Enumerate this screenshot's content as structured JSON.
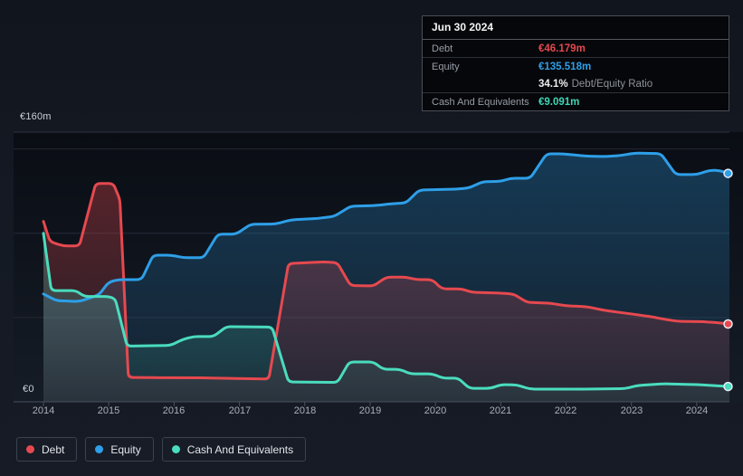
{
  "colors": {
    "debt": "#e5494f",
    "equity": "#2e9fe8",
    "cash": "#4adcbe",
    "debt_fill_top": "rgba(229,73,79,0.34)",
    "debt_fill_bottom": "rgba(229,73,79,0.08)",
    "equity_fill_top": "rgba(46,159,232,0.30)",
    "equity_fill_bottom": "rgba(46,159,232,0.05)",
    "cash_fill_top": "rgba(74,220,190,0.28)",
    "cash_fill_bottom": "rgba(74,220,190,0.07)"
  },
  "tooltip": {
    "date": "Jun 30 2024",
    "debt_label": "Debt",
    "debt_value": "€46.179m",
    "equity_label": "Equity",
    "equity_value": "€135.518m",
    "ratio_value": "34.1%",
    "ratio_label": "Debt/Equity Ratio",
    "cash_label": "Cash And Equivalents",
    "cash_value": "€9.091m"
  },
  "legend": {
    "debt": "Debt",
    "equity": "Equity",
    "cash": "Cash And Equivalents"
  },
  "y_axis": {
    "max_label": "€160m",
    "zero_label": "€0"
  },
  "chart_data": {
    "type": "area",
    "unit": "€m",
    "x_range": [
      2014,
      2024.5
    ],
    "y_range": [
      0,
      160
    ],
    "grid": true,
    "legend_position": "bottom-left",
    "y_gridlines_m": [
      50,
      100,
      150
    ],
    "x_tick_years": [
      "2014",
      "2015",
      "2016",
      "2017",
      "2018",
      "2019",
      "2020",
      "2021",
      "2022",
      "2023",
      "2024"
    ],
    "end_values": {
      "debt": 46.179,
      "equity": 135.518,
      "cash": 9.091
    },
    "series": [
      {
        "name": "Debt",
        "color_key": "debt",
        "points": [
          [
            2014,
            107
          ],
          [
            2014.1,
            95
          ],
          [
            2014.3,
            92.5
          ],
          [
            2014.55,
            92.5
          ],
          [
            2014.8,
            129.5
          ],
          [
            2015.07,
            129.5
          ],
          [
            2015.17,
            120
          ],
          [
            2015.3,
            14.5
          ],
          [
            2015.75,
            14.3
          ],
          [
            2016.5,
            14.2
          ],
          [
            2017,
            13.8
          ],
          [
            2017.45,
            13.5
          ],
          [
            2017.75,
            82
          ],
          [
            2018,
            82.5
          ],
          [
            2018.3,
            83
          ],
          [
            2018.5,
            82.5
          ],
          [
            2018.7,
            69
          ],
          [
            2019.05,
            68.7
          ],
          [
            2019.25,
            74
          ],
          [
            2019.55,
            74
          ],
          [
            2019.7,
            72.5
          ],
          [
            2019.95,
            72.5
          ],
          [
            2020.1,
            67
          ],
          [
            2020.4,
            67
          ],
          [
            2020.55,
            65
          ],
          [
            2021,
            64.5
          ],
          [
            2021.2,
            63.9
          ],
          [
            2021.4,
            59
          ],
          [
            2021.75,
            58.5
          ],
          [
            2022,
            57
          ],
          [
            2022.3,
            56.5
          ],
          [
            2022.6,
            54.2
          ],
          [
            2023,
            52.1
          ],
          [
            2023.3,
            50.5
          ],
          [
            2023.5,
            49
          ],
          [
            2023.7,
            47.8
          ],
          [
            2024.1,
            47.5
          ],
          [
            2024.3,
            47
          ],
          [
            2024.5,
            46.179
          ]
        ]
      },
      {
        "name": "Equity",
        "color_key": "equity",
        "points": [
          [
            2014,
            64
          ],
          [
            2014.2,
            60
          ],
          [
            2014.55,
            59.5
          ],
          [
            2014.85,
            63.5
          ],
          [
            2015,
            71
          ],
          [
            2015.15,
            72.5
          ],
          [
            2015.5,
            72.5
          ],
          [
            2015.68,
            87
          ],
          [
            2015.95,
            87
          ],
          [
            2016.15,
            85.5
          ],
          [
            2016.45,
            85.5
          ],
          [
            2016.67,
            99.5
          ],
          [
            2016.95,
            99.5
          ],
          [
            2017.17,
            105.3
          ],
          [
            2017.55,
            105.5
          ],
          [
            2017.8,
            108
          ],
          [
            2018.2,
            108.8
          ],
          [
            2018.45,
            110
          ],
          [
            2018.7,
            116
          ],
          [
            2019.1,
            116.5
          ],
          [
            2019.35,
            117.6
          ],
          [
            2019.55,
            118
          ],
          [
            2019.75,
            125.6
          ],
          [
            2020.3,
            126.2
          ],
          [
            2020.5,
            126.7
          ],
          [
            2020.72,
            130.5
          ],
          [
            2021,
            130.8
          ],
          [
            2021.15,
            132.6
          ],
          [
            2021.45,
            132.6
          ],
          [
            2021.7,
            147.1
          ],
          [
            2021.95,
            147.1
          ],
          [
            2022.3,
            145.8
          ],
          [
            2022.6,
            145.5
          ],
          [
            2022.85,
            146.2
          ],
          [
            2023.05,
            147.6
          ],
          [
            2023.45,
            147.3
          ],
          [
            2023.68,
            134.8
          ],
          [
            2024,
            134.8
          ],
          [
            2024.2,
            137.4
          ],
          [
            2024.35,
            137.2
          ],
          [
            2024.5,
            135.518
          ]
        ]
      },
      {
        "name": "Cash And Equivalents",
        "color_key": "cash",
        "points": [
          [
            2014,
            100
          ],
          [
            2014.12,
            66
          ],
          [
            2014.5,
            66
          ],
          [
            2014.62,
            62.5
          ],
          [
            2015,
            62.5
          ],
          [
            2015.1,
            61
          ],
          [
            2015.28,
            33
          ],
          [
            2015.95,
            33.5
          ],
          [
            2016.13,
            37
          ],
          [
            2016.3,
            38.7
          ],
          [
            2016.6,
            38.7
          ],
          [
            2016.8,
            44.6
          ],
          [
            2017.5,
            44.3
          ],
          [
            2017.75,
            11.8
          ],
          [
            2018.5,
            11.5
          ],
          [
            2018.68,
            23.6
          ],
          [
            2019.05,
            23.6
          ],
          [
            2019.2,
            19.3
          ],
          [
            2019.45,
            19.3
          ],
          [
            2019.62,
            16.6
          ],
          [
            2019.95,
            16.6
          ],
          [
            2020.12,
            14
          ],
          [
            2020.35,
            14
          ],
          [
            2020.52,
            8
          ],
          [
            2020.85,
            8
          ],
          [
            2021,
            10.2
          ],
          [
            2021.25,
            10
          ],
          [
            2021.45,
            7.5
          ],
          [
            2022.2,
            7.5
          ],
          [
            2022.9,
            7.8
          ],
          [
            2023.1,
            9.7
          ],
          [
            2023.5,
            10.7
          ],
          [
            2024,
            10.2
          ],
          [
            2024.5,
            9.091
          ]
        ]
      }
    ]
  }
}
